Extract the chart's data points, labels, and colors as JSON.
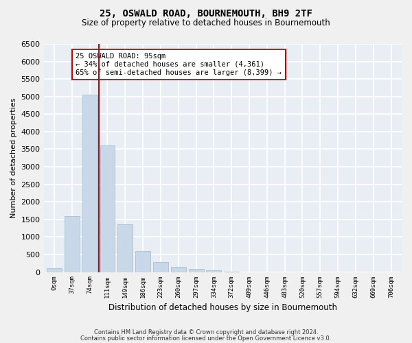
{
  "title": "25, OSWALD ROAD, BOURNEMOUTH, BH9 2TF",
  "subtitle": "Size of property relative to detached houses in Bournemouth",
  "xlabel": "Distribution of detached houses by size in Bournemouth",
  "ylabel": "Number of detached properties",
  "bar_values": [
    100,
    1600,
    5050,
    3600,
    1350,
    600,
    280,
    150,
    80,
    50,
    10,
    0,
    0,
    0,
    0,
    0,
    0,
    0,
    0,
    0
  ],
  "bar_color": "#c8d8e8",
  "bar_edge_color": "#a0b8cc",
  "x_labels": [
    "0sqm",
    "37sqm",
    "74sqm",
    "111sqm",
    "149sqm",
    "186sqm",
    "223sqm",
    "260sqm",
    "297sqm",
    "334sqm",
    "372sqm",
    "409sqm",
    "446sqm",
    "483sqm",
    "520sqm",
    "557sqm",
    "594sqm",
    "632sqm",
    "669sqm",
    "706sqm"
  ],
  "ylim": [
    0,
    6500
  ],
  "yticks": [
    0,
    500,
    1000,
    1500,
    2000,
    2500,
    3000,
    3500,
    4000,
    4500,
    5000,
    5500,
    6000,
    6500
  ],
  "vline_color": "#cc0000",
  "annotation_title": "25 OSWALD ROAD: 95sqm",
  "annotation_line1": "← 34% of detached houses are smaller (4,361)",
  "annotation_line2": "65% of semi-detached houses are larger (8,399) →",
  "annotation_box_color": "#cc0000",
  "bg_color": "#e8eef4",
  "grid_color": "#ffffff",
  "footer1": "Contains HM Land Registry data © Crown copyright and database right 2024.",
  "footer2": "Contains public sector information licensed under the Open Government Licence v3.0."
}
